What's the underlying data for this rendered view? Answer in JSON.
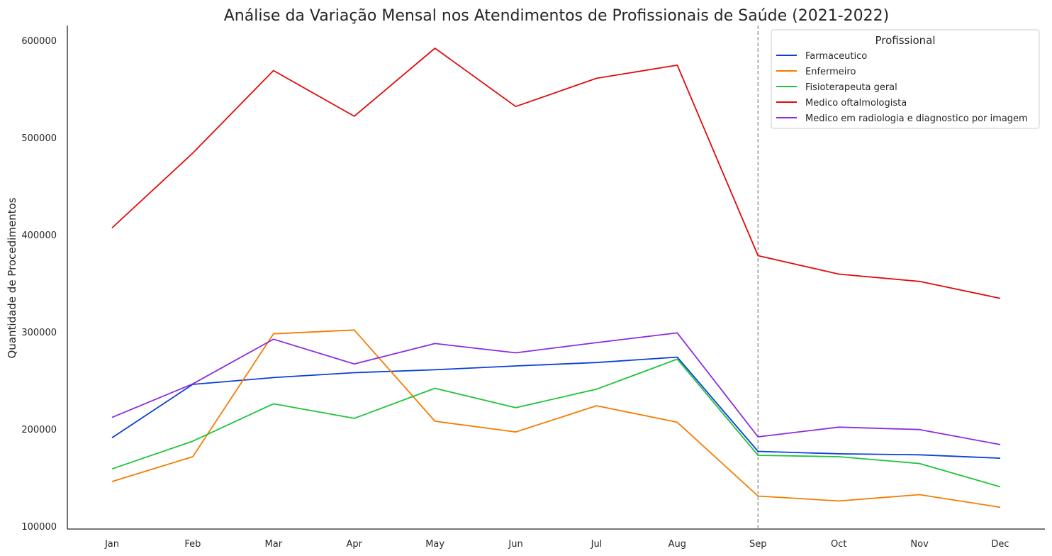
{
  "chart_data": {
    "type": "line",
    "title": "Análise da Variação Mensal nos Atendimentos de Profissionais de Saúde (2021-2022)",
    "xlabel": "",
    "ylabel": "Quantidade de Procedimentos",
    "categories": [
      "Jan",
      "Feb",
      "Mar",
      "Apr",
      "May",
      "Jun",
      "Jul",
      "Aug",
      "Sep",
      "Oct",
      "Nov",
      "Dec"
    ],
    "yticks": [
      100000,
      200000,
      300000,
      400000,
      500000,
      600000
    ],
    "ylim": [
      100000,
      615000
    ],
    "grid": false,
    "legend": {
      "title": "Profissional",
      "position": "top-right"
    },
    "vline": {
      "at": "Sep",
      "color": "#808080",
      "style": "dashed"
    },
    "series": [
      {
        "name": "Farmaceutico",
        "color": "#0a3fd9",
        "values": [
          191000,
          246000,
          253000,
          258000,
          261000,
          265000,
          268500,
          274000,
          177000,
          174500,
          173500,
          170000
        ]
      },
      {
        "name": "Enfermeiro",
        "color": "#f57c00",
        "values": [
          146000,
          171500,
          298000,
          302000,
          208000,
          197000,
          224000,
          207000,
          131000,
          126000,
          132500,
          119500
        ]
      },
      {
        "name": "Fisioterapeuta geral",
        "color": "#1ec43a",
        "values": [
          159000,
          187500,
          226000,
          211000,
          242000,
          222000,
          241000,
          272000,
          173000,
          171500,
          164500,
          140500
        ]
      },
      {
        "name": "Medico oftalmologista",
        "color": "#e00b0b",
        "values": [
          407000,
          484000,
          569000,
          522000,
          592000,
          532000,
          561000,
          574500,
          378500,
          359500,
          352000,
          334500
        ]
      },
      {
        "name": "Medico em radiologia e diagnostico por imagem",
        "color": "#8b2be2",
        "values": [
          212000,
          246500,
          292500,
          267000,
          288000,
          278500,
          289000,
          299000,
          192000,
          202000,
          199500,
          184000
        ]
      }
    ]
  }
}
